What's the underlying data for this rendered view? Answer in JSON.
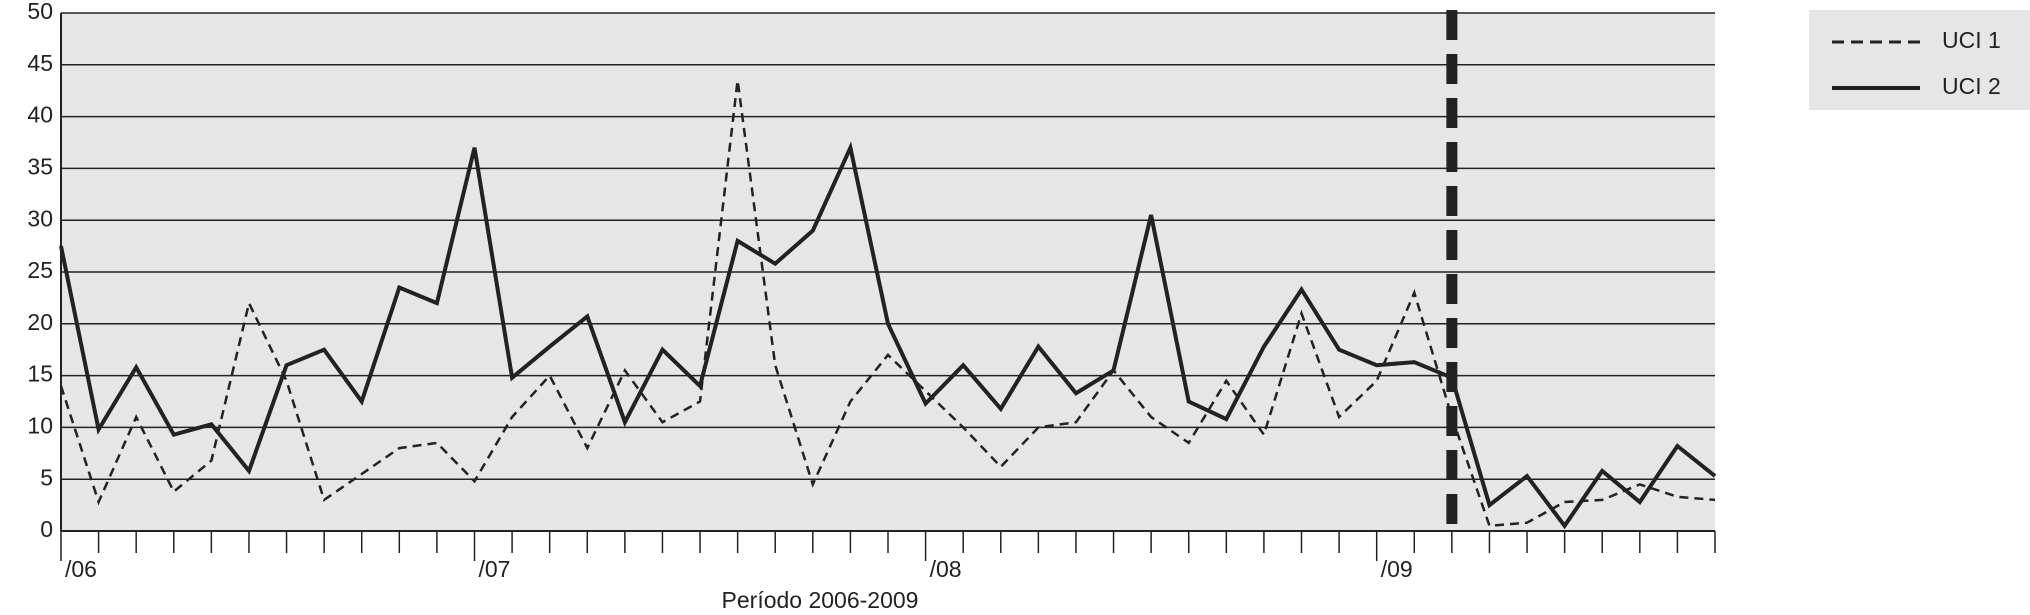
{
  "chart_data": {
    "type": "line",
    "xlabel": "Período 2006-2009",
    "categories": [
      "/06",
      null,
      null,
      null,
      null,
      null,
      null,
      null,
      null,
      null,
      null,
      "/07",
      null,
      null,
      null,
      null,
      null,
      null,
      null,
      null,
      null,
      null,
      null,
      "/08",
      null,
      null,
      null,
      null,
      null,
      null,
      null,
      null,
      null,
      null,
      null,
      "/09",
      null,
      null,
      null,
      null,
      null,
      null,
      null,
      null,
      null
    ],
    "series": [
      {
        "name": "UCI 1",
        "color": "#222222",
        "dash": true,
        "values": [
          14,
          2.8,
          11,
          3.8,
          6.8,
          22,
          14.5,
          3,
          5.5,
          8,
          8.5,
          4.8,
          11,
          15,
          8,
          15.5,
          10.5,
          12.5,
          43.5,
          16,
          4.5,
          12.5,
          17,
          13.5,
          10,
          6.2,
          10,
          10.5,
          15.5,
          11,
          8.5,
          14.5,
          9.3,
          21,
          11,
          14.5,
          23,
          11,
          0.5,
          0.8,
          2.8,
          3,
          4.5,
          3.3,
          3
        ]
      },
      {
        "name": "UCI 2",
        "color": "#222222",
        "dash": false,
        "values": [
          27.5,
          9.8,
          15.8,
          9.3,
          10.3,
          5.8,
          16,
          17.5,
          12.5,
          23.5,
          22,
          37,
          14.8,
          17.8,
          20.7,
          10.5,
          17.5,
          14,
          28,
          25.8,
          29,
          37,
          20,
          12.3,
          16,
          11.8,
          17.8,
          13.3,
          15.5,
          30.5,
          12.5,
          10.8,
          17.8,
          23.3,
          17.5,
          16,
          16.3,
          14.8,
          2.5,
          5.3,
          0.5,
          5.8,
          2.8,
          8.2,
          5.3
        ]
      }
    ],
    "marker_index": 37,
    "ylim": [
      0,
      50
    ],
    "yticks": [
      0,
      5,
      10,
      15,
      20,
      25,
      30,
      35,
      40,
      45,
      50
    ],
    "grid": true
  }
}
